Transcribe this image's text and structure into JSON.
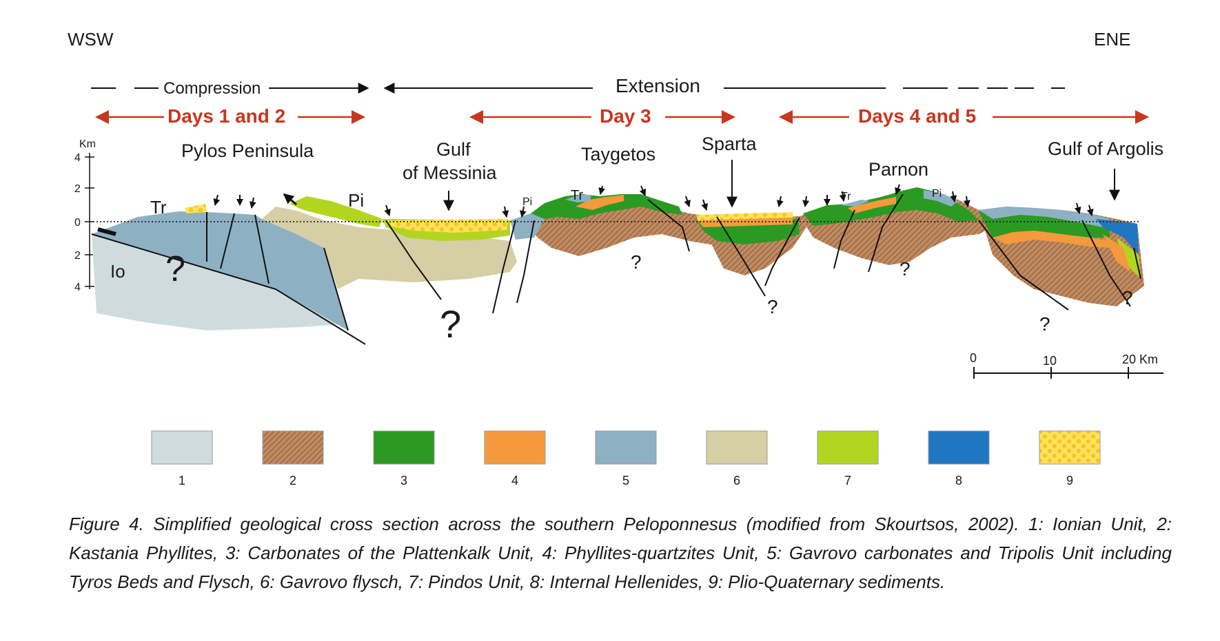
{
  "orientation": {
    "left": "WSW",
    "right": "ENE"
  },
  "regimes": {
    "compression": "Compression",
    "extension": "Extension"
  },
  "days": {
    "d12": "Days 1 and 2",
    "d3": "Day 3",
    "d45": "Days 4 and 5"
  },
  "axis": {
    "unit": "Km",
    "ticks": [
      "4",
      "2",
      "0",
      "2",
      "4"
    ]
  },
  "places": {
    "pylos": "Pylos Peninsula",
    "gulf_messinia_1": "Gulf",
    "gulf_messinia_2": "of Messinia",
    "taygetos": "Taygetos",
    "sparta": "Sparta",
    "parnon": "Parnon",
    "argolis": "Gulf of Argolis"
  },
  "unit_labels": {
    "tr": "Tr",
    "pi": "Pi",
    "io": "Io",
    "q": "?"
  },
  "scale_bar": {
    "ticks": [
      "0",
      "10",
      "20 Km"
    ]
  },
  "legend": [
    {
      "num": "1",
      "color": "#cfdcde"
    },
    {
      "num": "2",
      "color": "#c08a60"
    },
    {
      "num": "3",
      "color": "#2a9a23"
    },
    {
      "num": "4",
      "color": "#f49a3c"
    },
    {
      "num": "5",
      "color": "#8db0c3"
    },
    {
      "num": "6",
      "color": "#d6cea4"
    },
    {
      "num": "7",
      "color": "#b2d620"
    },
    {
      "num": "8",
      "color": "#1f77c2"
    },
    {
      "num": "9",
      "color": "#ffe35a"
    }
  ],
  "caption": "Figure 4. Simplified geological cross section across the southern Peloponnesus (modified from Skourtsos, 2002). 1: Ionian Unit, 2: Kastania Phyllites, 3: Carbonates of the Plattenkalk Unit, 4: Phyllites-quartzites Unit, 5: Gavrovo carbonates and Tripolis Unit including Tyros Beds and Flysch, 6: Gavrovo flysch, 7: Pindos Unit, 8: Internal Hellenides, 9: Plio-Quaternary sediments."
}
